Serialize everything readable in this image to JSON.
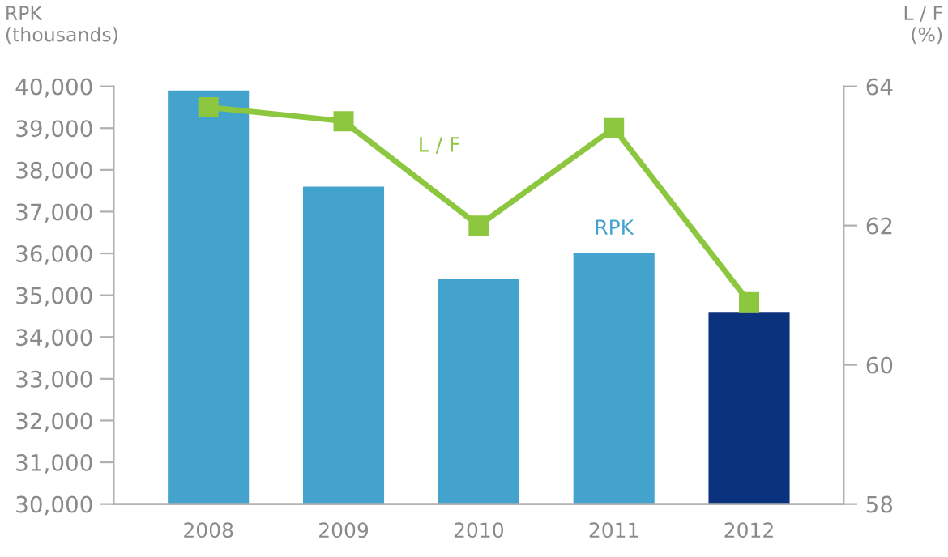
{
  "chart_data": {
    "type": "bar",
    "categories": [
      "2008",
      "2009",
      "2010",
      "2011",
      "2012"
    ],
    "ylabel": "RPK\n(thousands)",
    "y2label": "L / F\n(%)",
    "series": [
      {
        "name": "RPK",
        "colors": [
          "#44a3cc",
          "#44a3cc",
          "#44a3cc",
          "#44a3cc",
          "#0b327c"
        ],
        "color": "#44a3cc",
        "values": [
          39900,
          37600,
          35400,
          36000,
          34600
        ]
      },
      {
        "name": "L / F",
        "type": "line",
        "axis": "y2",
        "color": "#8dc63f",
        "marker": "square",
        "values": [
          63.7,
          63.5,
          62.0,
          63.4,
          60.9
        ]
      }
    ],
    "ylim": [
      30000,
      40000
    ],
    "yticks": [
      {
        "value": 30000,
        "label": "30,000"
      },
      {
        "value": 31000,
        "label": "31,000"
      },
      {
        "value": 32000,
        "label": "32,000"
      },
      {
        "value": 33000,
        "label": "33,000"
      },
      {
        "value": 34000,
        "label": "34,000"
      },
      {
        "value": 35000,
        "label": "35,000"
      },
      {
        "value": 36000,
        "label": "36,000"
      },
      {
        "value": 37000,
        "label": "37,000"
      },
      {
        "value": 38000,
        "label": "38,000"
      },
      {
        "value": 39000,
        "label": "39,000"
      },
      {
        "value": 40000,
        "label": "40,000"
      }
    ],
    "y2lim": [
      58,
      64
    ],
    "y2ticks": [
      58,
      60,
      62,
      64
    ],
    "grid": false,
    "legend": false
  }
}
